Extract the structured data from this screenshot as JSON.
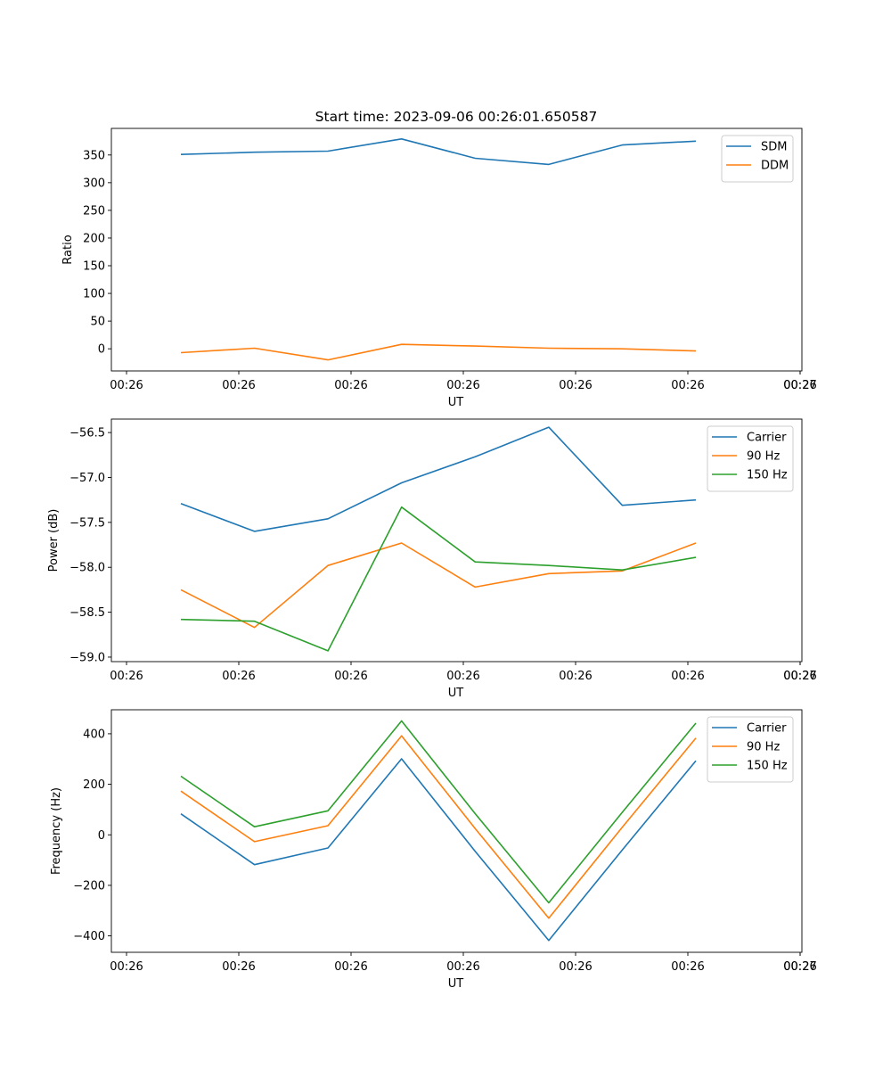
{
  "title": "Start time: 2023-09-06 00:26:01.650587",
  "colors": {
    "blue": "#1f77b4",
    "orange": "#ff7f0e",
    "green": "#2ca02c"
  },
  "chart_data": [
    {
      "type": "line",
      "title": "Start time: 2023-09-06 00:26:01.650587",
      "xlabel": "UT",
      "ylabel": "Ratio",
      "x_tick_labels": [
        "00:26",
        "00:26",
        "00:26",
        "00:26",
        "00:26",
        "00:26",
        "00:26",
        "00:27"
      ],
      "y_ticks": [
        0,
        50,
        100,
        150,
        200,
        250,
        300,
        350
      ],
      "ylim": [
        -40,
        398
      ],
      "x": [
        1,
        2,
        3,
        4,
        5,
        6,
        7,
        8
      ],
      "xlim": [
        0.2,
        9.3
      ],
      "legend_location": "upper right",
      "series": [
        {
          "name": "SDM",
          "color": "#1f77b4",
          "values": [
            351,
            355,
            357,
            379,
            344,
            333,
            368,
            375
          ]
        },
        {
          "name": "DDM",
          "color": "#ff7f0e",
          "values": [
            -7,
            1,
            -20,
            8,
            5,
            1,
            0,
            -4
          ]
        }
      ]
    },
    {
      "type": "line",
      "title": "",
      "xlabel": "UT",
      "ylabel": "Power (dB)",
      "x_tick_labels": [
        "00:26",
        "00:26",
        "00:26",
        "00:26",
        "00:26",
        "00:26",
        "00:26",
        "00:27"
      ],
      "y_ticks": [
        -59.0,
        -58.5,
        -58.0,
        -57.5,
        -57.0,
        -56.5
      ],
      "y_tick_labels": [
        "−59.0",
        "−58.5",
        "−58.0",
        "−57.5",
        "−57.0",
        "−56.5"
      ],
      "ylim": [
        -59.05,
        -56.35
      ],
      "x": [
        1,
        2,
        3,
        4,
        5,
        6,
        7,
        8
      ],
      "xlim": [
        0.2,
        9.3
      ],
      "legend_location": "upper right",
      "series": [
        {
          "name": "Carrier",
          "color": "#1f77b4",
          "values": [
            -57.29,
            -57.6,
            -57.46,
            -57.06,
            -56.77,
            -56.44,
            -57.31,
            -57.25
          ]
        },
        {
          "name": "90 Hz",
          "color": "#ff7f0e",
          "values": [
            -58.25,
            -58.67,
            -57.98,
            -57.73,
            -58.22,
            -58.07,
            -58.04,
            -57.73
          ]
        },
        {
          "name": "150 Hz",
          "color": "#2ca02c",
          "values": [
            -58.58,
            -58.6,
            -58.93,
            -57.33,
            -57.94,
            -57.98,
            -58.03,
            -57.89
          ]
        }
      ]
    },
    {
      "type": "line",
      "title": "",
      "xlabel": "UT",
      "ylabel": "Frequency (Hz)",
      "x_tick_labels": [
        "00:26",
        "00:26",
        "00:26",
        "00:26",
        "00:26",
        "00:26",
        "00:26",
        "00:27"
      ],
      "y_ticks": [
        -400,
        -200,
        0,
        200,
        400
      ],
      "y_tick_labels": [
        "−400",
        "−200",
        "0",
        "200",
        "400"
      ],
      "ylim": [
        -465,
        495
      ],
      "x": [
        1,
        2,
        3,
        4,
        5,
        6,
        7,
        8
      ],
      "xlim": [
        0.2,
        9.3
      ],
      "legend_location": "upper right",
      "series": [
        {
          "name": "Carrier",
          "color": "#1f77b4",
          "values": [
            83,
            -118,
            -52,
            301,
            -65,
            -418,
            -60,
            293
          ]
        },
        {
          "name": "90 Hz",
          "color": "#ff7f0e",
          "values": [
            173,
            -27,
            36,
            392,
            25,
            -330,
            30,
            383
          ]
        },
        {
          "name": "150 Hz",
          "color": "#2ca02c",
          "values": [
            232,
            32,
            95,
            451,
            84,
            -269,
            89,
            442
          ]
        }
      ]
    }
  ]
}
